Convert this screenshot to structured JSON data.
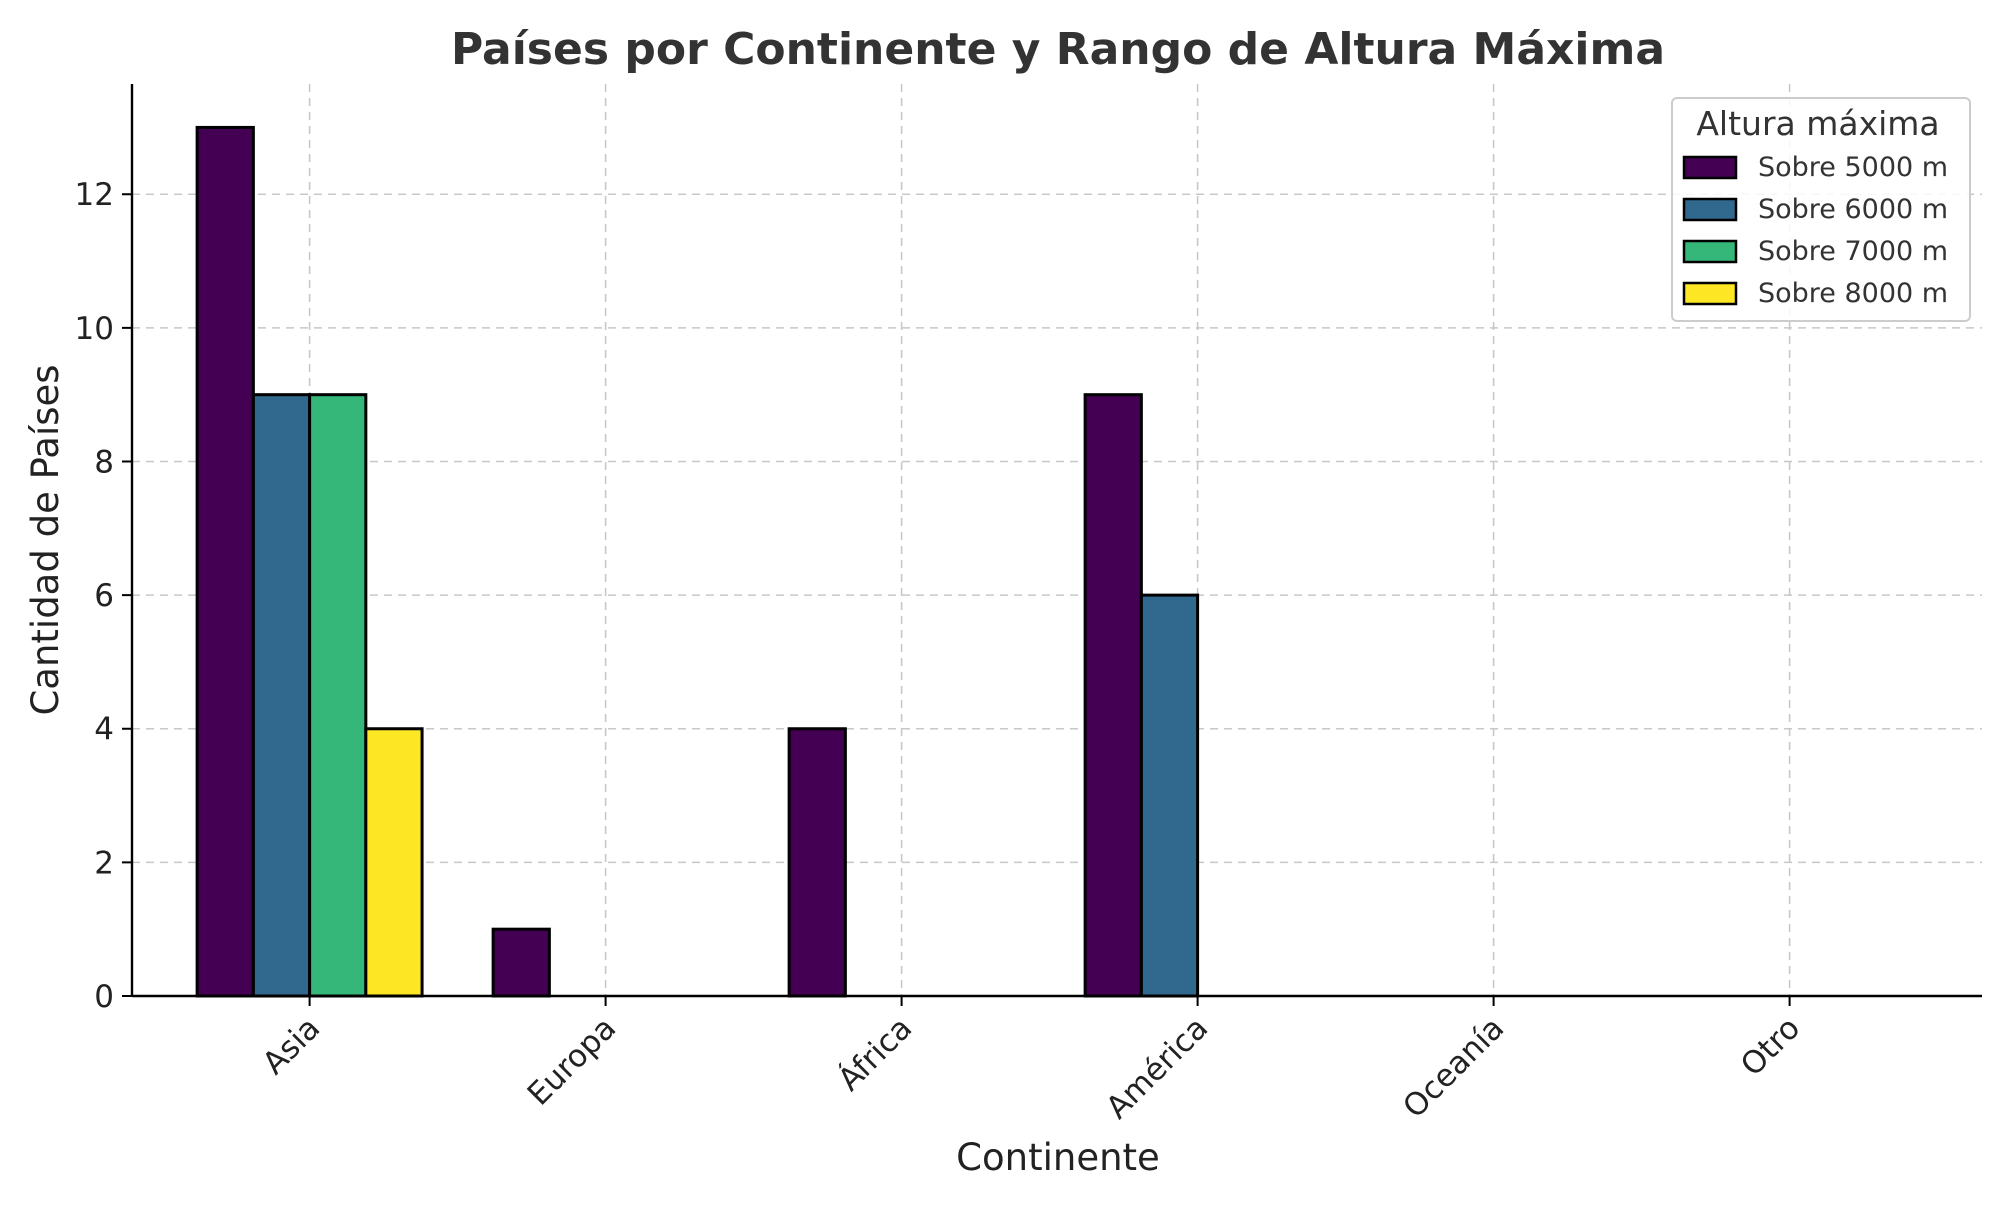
{
  "chart_data": {
    "type": "bar",
    "title": "Países por Continente y Rango de Altura Máxima",
    "xlabel": "Continente",
    "ylabel": "Cantidad de Países",
    "categories": [
      "Asia",
      "Europa",
      "África",
      "América",
      "Oceanía",
      "Otro"
    ],
    "ylim": [
      0,
      13.65
    ],
    "yticks": [
      0,
      2,
      4,
      6,
      8,
      10,
      12
    ],
    "grid": true,
    "legend": {
      "title": "Altura máxima",
      "placement": "top-right"
    },
    "series": [
      {
        "name": "Sobre 5000 m",
        "color": "#440154",
        "values": [
          13,
          1,
          4,
          9,
          0,
          0
        ]
      },
      {
        "name": "Sobre 6000 m",
        "color": "#31688e",
        "values": [
          9,
          0,
          0,
          6,
          0,
          0
        ]
      },
      {
        "name": "Sobre 7000 m",
        "color": "#35b779",
        "values": [
          9,
          0,
          0,
          0,
          0,
          0
        ]
      },
      {
        "name": "Sobre 8000 m",
        "color": "#fde725",
        "values": [
          4,
          0,
          0,
          0,
          0,
          0
        ]
      }
    ]
  }
}
